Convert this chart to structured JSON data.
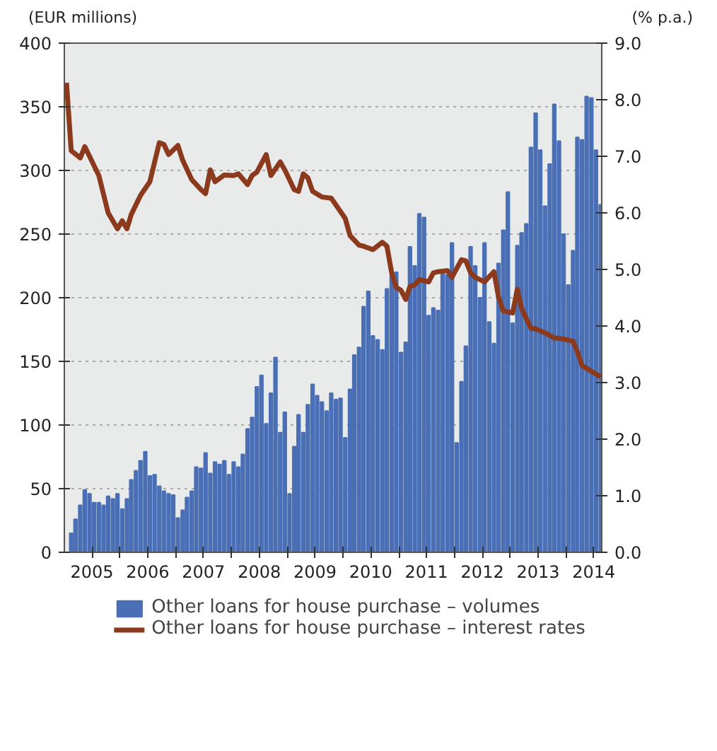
{
  "chart_data": {
    "type": "bar",
    "ylabel": "(EUR millions)",
    "y2label": "(% p.a.)",
    "x": [
      "2005-02-15",
      "2005-03-15",
      "2005-04-15",
      "2005-05-15",
      "2005-06-15",
      "2005-07-15",
      "2005-08-15",
      "2005-09-15",
      "2005-10-15",
      "2005-11-15",
      "2005-12-15",
      "2006-01-15",
      "2006-02-15",
      "2006-03-15",
      "2006-04-15",
      "2006-05-15",
      "2006-06-15",
      "2006-07-15",
      "2006-08-15",
      "2006-09-15",
      "2006-10-15",
      "2006-11-15",
      "2006-12-15",
      "2007-01-15",
      "2007-02-15",
      "2007-03-15",
      "2007-04-15",
      "2007-05-15",
      "2007-06-15",
      "2007-07-15",
      "2007-08-15",
      "2007-09-15",
      "2007-10-15",
      "2007-11-15",
      "2007-12-15",
      "2008-01-15",
      "2008-02-15",
      "2008-03-15",
      "2008-04-15",
      "2008-05-15",
      "2008-06-15",
      "2008-07-15",
      "2008-08-15",
      "2008-09-15",
      "2008-10-15",
      "2008-11-15",
      "2008-12-15",
      "2009-01-15",
      "2009-02-15",
      "2009-03-15",
      "2009-04-15",
      "2009-05-15",
      "2009-06-15",
      "2009-07-15",
      "2009-08-15",
      "2009-09-15",
      "2009-10-15",
      "2009-11-15",
      "2009-12-15",
      "2010-01-15",
      "2010-02-15",
      "2010-03-15",
      "2010-04-15",
      "2010-05-15",
      "2010-06-15",
      "2010-07-15",
      "2010-08-15",
      "2010-09-15",
      "2010-10-15",
      "2010-11-15",
      "2010-12-15",
      "2011-01-15",
      "2011-02-15",
      "2011-03-15",
      "2011-04-15",
      "2011-05-15",
      "2011-06-15",
      "2011-07-15",
      "2011-08-15",
      "2011-09-15",
      "2011-10-15",
      "2011-11-15",
      "2011-12-15",
      "2012-01-15",
      "2012-02-15",
      "2012-03-15",
      "2012-04-15",
      "2012-05-15",
      "2012-06-15",
      "2012-07-15",
      "2012-08-15",
      "2012-09-15",
      "2012-10-15",
      "2012-11-15",
      "2012-12-15",
      "2013-01-15",
      "2013-02-15",
      "2013-03-15",
      "2013-04-15",
      "2013-05-15",
      "2013-06-15",
      "2013-07-15",
      "2013-08-15",
      "2013-09-15",
      "2013-10-15",
      "2013-11-15",
      "2013-12-15",
      "2014-01-15",
      "2014-02-15",
      "2014-03-15",
      "2014-04-15",
      "2014-05-15",
      "2014-06-15",
      "2014-07-15",
      "2014-08-15"
    ],
    "series": [
      {
        "name": "Other loans for house purchase – volumes",
        "color": "#4a6fb5",
        "values": [
          15,
          26,
          37,
          49,
          46,
          39,
          39,
          37,
          44,
          42,
          46,
          34,
          42,
          57,
          64,
          72,
          79,
          60,
          61,
          52,
          48,
          46,
          45,
          27,
          33,
          43,
          48,
          67,
          66,
          78,
          62,
          71,
          69,
          72,
          61,
          71,
          67,
          77,
          97,
          106,
          130,
          139,
          101,
          125,
          153,
          94,
          110,
          46,
          83,
          108,
          94,
          116,
          132,
          123,
          118,
          111,
          125,
          120,
          121,
          90,
          128,
          155,
          161,
          193,
          205,
          170,
          167,
          159,
          207,
          218,
          220,
          157,
          165,
          240,
          225,
          266,
          263,
          186,
          192,
          190,
          220,
          218,
          243,
          86,
          134,
          162,
          240,
          225,
          200,
          243,
          181,
          164,
          227,
          253,
          283,
          180,
          241,
          251,
          258,
          318,
          345,
          316,
          272,
          305,
          352,
          323,
          250,
          210,
          237,
          326,
          324,
          358,
          357,
          316,
          273
        ]
      },
      {
        "name": "Other loans for house purchase – interest rates",
        "type": "line",
        "axis": "y2",
        "color": "#8b3a1e",
        "x": [
          "2005-01-15",
          "2005-02-15",
          "2005-04-15",
          "2005-05-15",
          "2005-06-15",
          "2005-08-15",
          "2005-10-15",
          "2005-12-15",
          "2006-01-15",
          "2006-02-15",
          "2006-03-15",
          "2006-05-15",
          "2006-07-15",
          "2006-09-15",
          "2006-10-15",
          "2006-11-15",
          "2007-01-15",
          "2007-02-15",
          "2007-04-15",
          "2007-06-15",
          "2007-07-15",
          "2007-08-15",
          "2007-09-15",
          "2007-11-15",
          "2008-01-15",
          "2008-02-15",
          "2008-04-15",
          "2008-05-15",
          "2008-06-15",
          "2008-08-15",
          "2008-09-15",
          "2008-11-15",
          "2008-12-15",
          "2009-02-15",
          "2009-03-15",
          "2009-04-15",
          "2009-05-15",
          "2009-06-15",
          "2009-08-15",
          "2009-10-15",
          "2009-11-15",
          "2010-01-15",
          "2010-02-15",
          "2010-04-15",
          "2010-05-15",
          "2010-07-15",
          "2010-09-15",
          "2010-10-15",
          "2010-11-15",
          "2010-12-15",
          "2011-01-15",
          "2011-02-15",
          "2011-03-15",
          "2011-04-15",
          "2011-05-15",
          "2011-07-15",
          "2011-08-15",
          "2011-09-15",
          "2011-11-15",
          "2011-12-15",
          "2012-02-15",
          "2012-03-15",
          "2012-04-15",
          "2012-05-15",
          "2012-07-15",
          "2012-09-15",
          "2012-10-15",
          "2012-11-15",
          "2013-01-15",
          "2013-02-15",
          "2013-03-15",
          "2013-05-15",
          "2013-06-15",
          "2013-08-15",
          "2013-10-15",
          "2013-12-15",
          "2014-02-15",
          "2014-03-15",
          "2014-04-15",
          "2014-06-15",
          "2014-08-15"
        ],
        "values": [
          8.3,
          7.1,
          6.97,
          7.17,
          7.0,
          6.66,
          6.0,
          5.72,
          5.86,
          5.72,
          5.97,
          6.31,
          6.55,
          7.24,
          7.21,
          7.03,
          7.19,
          6.93,
          6.59,
          6.41,
          6.34,
          6.76,
          6.55,
          6.67,
          6.66,
          6.69,
          6.5,
          6.66,
          6.72,
          7.03,
          6.66,
          6.9,
          6.76,
          6.41,
          6.38,
          6.69,
          6.62,
          6.38,
          6.28,
          6.26,
          6.14,
          5.9,
          5.6,
          5.43,
          5.41,
          5.35,
          5.48,
          5.41,
          4.94,
          4.68,
          4.63,
          4.47,
          4.7,
          4.73,
          4.82,
          4.78,
          4.94,
          4.96,
          4.98,
          4.86,
          5.17,
          5.15,
          4.94,
          4.86,
          4.78,
          4.96,
          4.51,
          4.27,
          4.23,
          4.65,
          4.31,
          3.96,
          3.95,
          3.88,
          3.79,
          3.77,
          3.73,
          3.55,
          3.3,
          3.2,
          3.1
        ]
      }
    ],
    "xlim": [
      "2005-01-01",
      "2014-08-22"
    ],
    "xticks": [
      {
        "value": "2005-07-01",
        "label": "2005"
      },
      {
        "value": "2006-01-01",
        "label": null
      },
      {
        "value": "2006-07-01",
        "label": "2006"
      },
      {
        "value": "2007-01-01",
        "label": null
      },
      {
        "value": "2007-07-01",
        "label": "2007"
      },
      {
        "value": "2008-01-01",
        "label": null
      },
      {
        "value": "2008-07-01",
        "label": "2008"
      },
      {
        "value": "2009-01-01",
        "label": null
      },
      {
        "value": "2009-07-01",
        "label": "2009"
      },
      {
        "value": "2010-01-01",
        "label": null
      },
      {
        "value": "2010-07-01",
        "label": "2010"
      },
      {
        "value": "2011-01-01",
        "label": null
      },
      {
        "value": "2011-07-01",
        "label": "2011"
      },
      {
        "value": "2012-01-01",
        "label": null
      },
      {
        "value": "2012-07-01",
        "label": "2012"
      },
      {
        "value": "2013-01-01",
        "label": null
      },
      {
        "value": "2013-07-01",
        "label": "2013"
      },
      {
        "value": "2014-01-01",
        "label": null
      },
      {
        "value": "2014-07-01",
        "label": "2014"
      }
    ],
    "ylim": [
      0,
      400
    ],
    "yticks": [
      0,
      50,
      100,
      150,
      200,
      250,
      300,
      350,
      400
    ],
    "y2lim": [
      0,
      9
    ],
    "y2ticks": [
      {
        "value": 0,
        "label": "0.0"
      },
      {
        "value": 1,
        "label": "1.0"
      },
      {
        "value": 2,
        "label": "2.0"
      },
      {
        "value": 3,
        "label": "3.0"
      },
      {
        "value": 4,
        "label": "4.0"
      },
      {
        "value": 5,
        "label": "5.0"
      },
      {
        "value": 6,
        "label": "6.0"
      },
      {
        "value": 7,
        "label": "7.0"
      },
      {
        "value": 8,
        "label": "8.0"
      },
      {
        "value": 9,
        "label": "9.0"
      }
    ],
    "grid": "y",
    "legend": "bottom"
  }
}
